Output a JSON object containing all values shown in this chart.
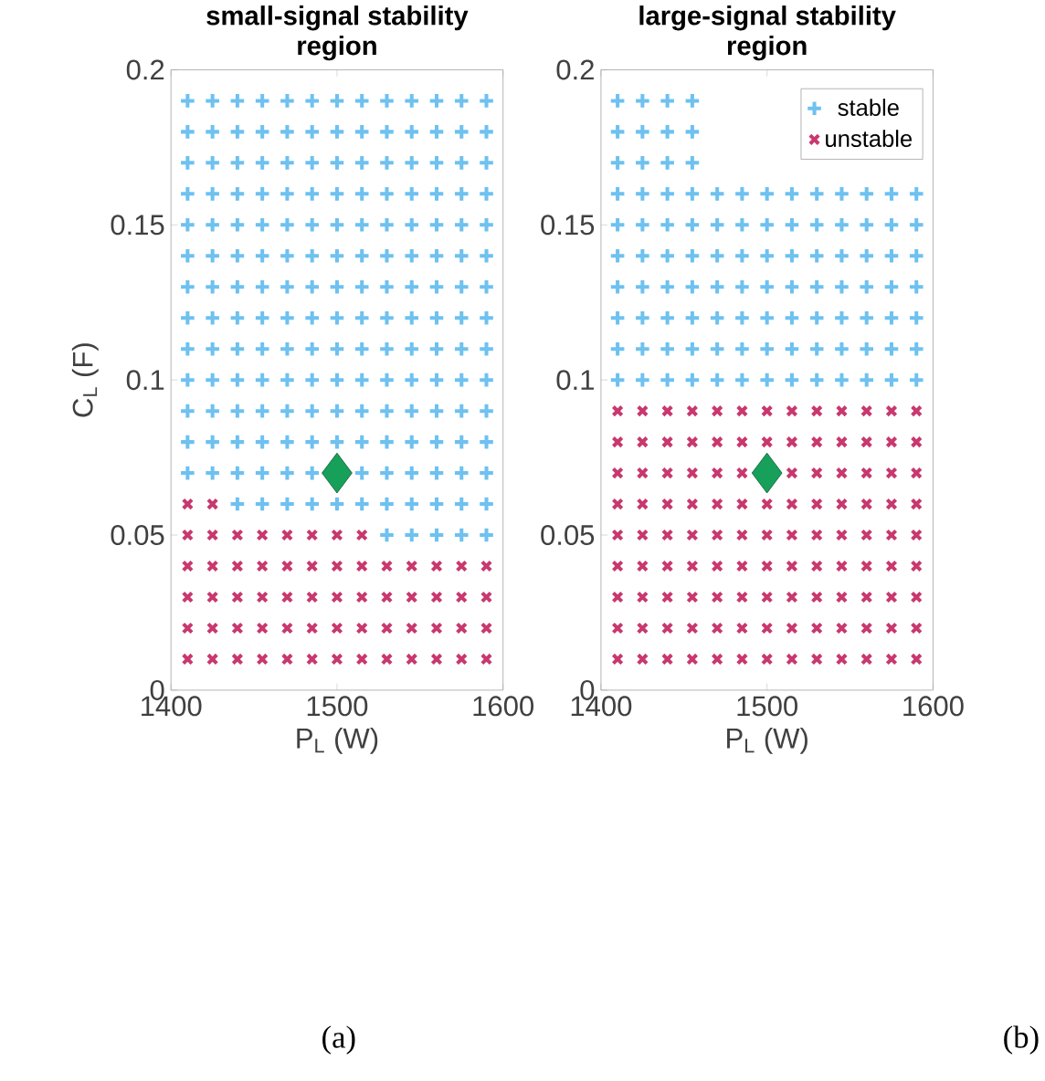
{
  "chart_data": [
    {
      "type": "scatter",
      "title": "small-signal stability region",
      "xlabel": "P$_{L}$ (W)",
      "ylabel": "C$_{L}$ (F)",
      "xlim": [
        1400,
        1600
      ],
      "ylim": [
        0,
        0.2
      ],
      "xticks": [
        1400,
        1500,
        1600
      ],
      "yticks": [
        0,
        0.05,
        0.1,
        0.15,
        0.2
      ],
      "annotations": [
        "(a)"
      ],
      "series": [
        {
          "color": "#6ec1f0",
          "marker": "plus",
          "x": [
            1530,
            1545,
            1560,
            1575,
            1590,
            1440,
            1455,
            1470,
            1485,
            1500,
            1515,
            1530,
            1545,
            1560,
            1575,
            1590,
            1410,
            1425,
            1440,
            1455,
            1470,
            1485,
            1515,
            1530,
            1545,
            1560,
            1575,
            1590,
            1410,
            1425,
            1440,
            1455,
            1470,
            1485,
            1500,
            1515,
            1530,
            1545,
            1560,
            1575,
            1590,
            1410,
            1425,
            1440,
            1455,
            1470,
            1485,
            1500,
            1515,
            1530,
            1545,
            1560,
            1575,
            1590,
            1410,
            1425,
            1440,
            1455,
            1470,
            1485,
            1500,
            1515,
            1530,
            1545,
            1560,
            1575,
            1590,
            1410,
            1425,
            1440,
            1455,
            1470,
            1485,
            1500,
            1515,
            1530,
            1545,
            1560,
            1575,
            1590,
            1410,
            1425,
            1440,
            1455,
            1470,
            1485,
            1500,
            1515,
            1530,
            1545,
            1560,
            1575,
            1590,
            1410,
            1425,
            1440,
            1455,
            1470,
            1485,
            1500,
            1515,
            1530,
            1545,
            1560,
            1575,
            1590,
            1410,
            1425,
            1440,
            1455,
            1470,
            1485,
            1500,
            1515,
            1530,
            1545,
            1560,
            1575,
            1590,
            1410,
            1425,
            1440,
            1455,
            1470,
            1485,
            1500,
            1515,
            1530,
            1545,
            1560,
            1575,
            1590,
            1410,
            1425,
            1440,
            1455,
            1470,
            1485,
            1500,
            1515,
            1530,
            1545,
            1560,
            1575,
            1590,
            1410,
            1425,
            1440,
            1455,
            1470,
            1485,
            1500,
            1515,
            1530,
            1545,
            1560,
            1575,
            1590,
            1410,
            1425,
            1440,
            1455,
            1470,
            1485,
            1500,
            1515,
            1530,
            1545,
            1560,
            1575,
            1590,
            1410,
            1425,
            1440,
            1455,
            1470,
            1485,
            1500,
            1515,
            1530,
            1545,
            1560,
            1575,
            1590
          ],
          "values": [
            0.05,
            0.05,
            0.05,
            0.05,
            0.05,
            0.06,
            0.06,
            0.06,
            0.06,
            0.06,
            0.06,
            0.06,
            0.06,
            0.06,
            0.06,
            0.06,
            0.07,
            0.07,
            0.07,
            0.07,
            0.07,
            0.07,
            0.07,
            0.07,
            0.07,
            0.07,
            0.07,
            0.07,
            0.08,
            0.08,
            0.08,
            0.08,
            0.08,
            0.08,
            0.08,
            0.08,
            0.08,
            0.08,
            0.08,
            0.08,
            0.08,
            0.09,
            0.09,
            0.09,
            0.09,
            0.09,
            0.09,
            0.09,
            0.09,
            0.09,
            0.09,
            0.09,
            0.09,
            0.09,
            0.1,
            0.1,
            0.1,
            0.1,
            0.1,
            0.1,
            0.1,
            0.1,
            0.1,
            0.1,
            0.1,
            0.1,
            0.1,
            0.11,
            0.11,
            0.11,
            0.11,
            0.11,
            0.11,
            0.11,
            0.11,
            0.11,
            0.11,
            0.11,
            0.11,
            0.11,
            0.12,
            0.12,
            0.12,
            0.12,
            0.12,
            0.12,
            0.12,
            0.12,
            0.12,
            0.12,
            0.12,
            0.12,
            0.12,
            0.13,
            0.13,
            0.13,
            0.13,
            0.13,
            0.13,
            0.13,
            0.13,
            0.13,
            0.13,
            0.13,
            0.13,
            0.13,
            0.14,
            0.14,
            0.14,
            0.14,
            0.14,
            0.14,
            0.14,
            0.14,
            0.14,
            0.14,
            0.14,
            0.14,
            0.14,
            0.15,
            0.15,
            0.15,
            0.15,
            0.15,
            0.15,
            0.15,
            0.15,
            0.15,
            0.15,
            0.15,
            0.15,
            0.15,
            0.16,
            0.16,
            0.16,
            0.16,
            0.16,
            0.16,
            0.16,
            0.16,
            0.16,
            0.16,
            0.16,
            0.16,
            0.16,
            0.17,
            0.17,
            0.17,
            0.17,
            0.17,
            0.17,
            0.17,
            0.17,
            0.17,
            0.17,
            0.17,
            0.17,
            0.17,
            0.18,
            0.18,
            0.18,
            0.18,
            0.18,
            0.18,
            0.18,
            0.18,
            0.18,
            0.18,
            0.18,
            0.18,
            0.18,
            0.19,
            0.19,
            0.19,
            0.19,
            0.19,
            0.19,
            0.19,
            0.19,
            0.19,
            0.19,
            0.19,
            0.19,
            0.19
          ]
        },
        {
          "color": "#c8386e",
          "marker": "cross",
          "x": [
            1410,
            1425,
            1440,
            1455,
            1470,
            1485,
            1500,
            1515,
            1530,
            1545,
            1560,
            1575,
            1590,
            1410,
            1425,
            1440,
            1455,
            1470,
            1485,
            1500,
            1515,
            1530,
            1545,
            1560,
            1575,
            1590,
            1410,
            1425,
            1440,
            1455,
            1470,
            1485,
            1500,
            1515,
            1530,
            1545,
            1560,
            1575,
            1590,
            1410,
            1425,
            1440,
            1455,
            1470,
            1485,
            1500,
            1515,
            1530,
            1545,
            1560,
            1575,
            1590,
            1410,
            1425,
            1440,
            1455,
            1470,
            1485,
            1500,
            1515,
            1410,
            1425
          ],
          "values": [
            0.01,
            0.01,
            0.01,
            0.01,
            0.01,
            0.01,
            0.01,
            0.01,
            0.01,
            0.01,
            0.01,
            0.01,
            0.01,
            0.02,
            0.02,
            0.02,
            0.02,
            0.02,
            0.02,
            0.02,
            0.02,
            0.02,
            0.02,
            0.02,
            0.02,
            0.02,
            0.03,
            0.03,
            0.03,
            0.03,
            0.03,
            0.03,
            0.03,
            0.03,
            0.03,
            0.03,
            0.03,
            0.03,
            0.03,
            0.04,
            0.04,
            0.04,
            0.04,
            0.04,
            0.04,
            0.04,
            0.04,
            0.04,
            0.04,
            0.04,
            0.04,
            0.04,
            0.05,
            0.05,
            0.05,
            0.05,
            0.05,
            0.05,
            0.05,
            0.05,
            0.06,
            0.06
          ]
        },
        {
          "color": "#16a05a",
          "marker": "diamond",
          "x": [
            1500
          ],
          "values": [
            0.07
          ]
        }
      ]
    },
    {
      "type": "scatter",
      "title": "large-signal stability region",
      "xlabel": "P$_{L}$ (W)",
      "xlim": [
        1400,
        1600
      ],
      "ylim": [
        0,
        0.2
      ],
      "xticks": [
        1400,
        1500,
        1600
      ],
      "yticks": [
        0,
        0.05,
        0.1,
        0.15,
        0.2
      ],
      "annotations": [
        "(b)"
      ],
      "legend": "top right",
      "series": [
        {
          "name": "stable",
          "color": "#6ec1f0",
          "marker": "plus",
          "x": [
            1410,
            1425,
            1440,
            1455,
            1470,
            1485,
            1500,
            1515,
            1530,
            1545,
            1560,
            1575,
            1590,
            1410,
            1425,
            1440,
            1455,
            1470,
            1485,
            1500,
            1515,
            1530,
            1545,
            1560,
            1575,
            1590,
            1410,
            1425,
            1440,
            1455,
            1470,
            1485,
            1500,
            1515,
            1530,
            1545,
            1560,
            1575,
            1590,
            1410,
            1425,
            1440,
            1455,
            1470,
            1485,
            1500,
            1515,
            1530,
            1545,
            1560,
            1575,
            1590,
            1410,
            1425,
            1440,
            1455,
            1470,
            1485,
            1500,
            1515,
            1530,
            1545,
            1560,
            1575,
            1590,
            1410,
            1425,
            1440,
            1455,
            1470,
            1485,
            1500,
            1515,
            1530,
            1545,
            1560,
            1575,
            1590,
            1410,
            1425,
            1440,
            1455,
            1470,
            1485,
            1500,
            1515,
            1530,
            1545,
            1560,
            1575,
            1590,
            1410,
            1425,
            1440,
            1455,
            1410,
            1425,
            1440,
            1455,
            1410,
            1425,
            1440,
            1455
          ],
          "values": [
            0.1,
            0.1,
            0.1,
            0.1,
            0.1,
            0.1,
            0.1,
            0.1,
            0.1,
            0.1,
            0.1,
            0.1,
            0.1,
            0.11,
            0.11,
            0.11,
            0.11,
            0.11,
            0.11,
            0.11,
            0.11,
            0.11,
            0.11,
            0.11,
            0.11,
            0.11,
            0.12,
            0.12,
            0.12,
            0.12,
            0.12,
            0.12,
            0.12,
            0.12,
            0.12,
            0.12,
            0.12,
            0.12,
            0.12,
            0.13,
            0.13,
            0.13,
            0.13,
            0.13,
            0.13,
            0.13,
            0.13,
            0.13,
            0.13,
            0.13,
            0.13,
            0.13,
            0.14,
            0.14,
            0.14,
            0.14,
            0.14,
            0.14,
            0.14,
            0.14,
            0.14,
            0.14,
            0.14,
            0.14,
            0.14,
            0.15,
            0.15,
            0.15,
            0.15,
            0.15,
            0.15,
            0.15,
            0.15,
            0.15,
            0.15,
            0.15,
            0.15,
            0.15,
            0.16,
            0.16,
            0.16,
            0.16,
            0.16,
            0.16,
            0.16,
            0.16,
            0.16,
            0.16,
            0.16,
            0.16,
            0.16,
            0.17,
            0.17,
            0.17,
            0.17,
            0.18,
            0.18,
            0.18,
            0.18,
            0.19,
            0.19,
            0.19,
            0.19
          ]
        },
        {
          "name": "unstable",
          "color": "#c8386e",
          "marker": "cross",
          "x": [
            1410,
            1425,
            1440,
            1455,
            1470,
            1485,
            1500,
            1515,
            1530,
            1545,
            1560,
            1575,
            1590,
            1410,
            1425,
            1440,
            1455,
            1470,
            1485,
            1500,
            1515,
            1530,
            1545,
            1560,
            1575,
            1590,
            1410,
            1425,
            1440,
            1455,
            1470,
            1485,
            1500,
            1515,
            1530,
            1545,
            1560,
            1575,
            1590,
            1410,
            1425,
            1440,
            1455,
            1470,
            1485,
            1500,
            1515,
            1530,
            1545,
            1560,
            1575,
            1590,
            1410,
            1425,
            1440,
            1455,
            1470,
            1485,
            1500,
            1515,
            1530,
            1545,
            1560,
            1575,
            1590,
            1410,
            1425,
            1440,
            1455,
            1470,
            1485,
            1500,
            1515,
            1530,
            1545,
            1560,
            1575,
            1590,
            1410,
            1425,
            1440,
            1455,
            1470,
            1485,
            1515,
            1530,
            1545,
            1560,
            1575,
            1590,
            1410,
            1425,
            1440,
            1455,
            1470,
            1485,
            1500,
            1515,
            1530,
            1545,
            1560,
            1575,
            1590,
            1410,
            1425,
            1440,
            1455,
            1470,
            1485,
            1500,
            1515,
            1530,
            1545,
            1560,
            1575,
            1590
          ],
          "values": [
            0.01,
            0.01,
            0.01,
            0.01,
            0.01,
            0.01,
            0.01,
            0.01,
            0.01,
            0.01,
            0.01,
            0.01,
            0.01,
            0.02,
            0.02,
            0.02,
            0.02,
            0.02,
            0.02,
            0.02,
            0.02,
            0.02,
            0.02,
            0.02,
            0.02,
            0.02,
            0.03,
            0.03,
            0.03,
            0.03,
            0.03,
            0.03,
            0.03,
            0.03,
            0.03,
            0.03,
            0.03,
            0.03,
            0.03,
            0.04,
            0.04,
            0.04,
            0.04,
            0.04,
            0.04,
            0.04,
            0.04,
            0.04,
            0.04,
            0.04,
            0.04,
            0.04,
            0.05,
            0.05,
            0.05,
            0.05,
            0.05,
            0.05,
            0.05,
            0.05,
            0.05,
            0.05,
            0.05,
            0.05,
            0.05,
            0.06,
            0.06,
            0.06,
            0.06,
            0.06,
            0.06,
            0.06,
            0.06,
            0.06,
            0.06,
            0.06,
            0.06,
            0.06,
            0.07,
            0.07,
            0.07,
            0.07,
            0.07,
            0.07,
            0.07,
            0.07,
            0.07,
            0.07,
            0.07,
            0.07,
            0.08,
            0.08,
            0.08,
            0.08,
            0.08,
            0.08,
            0.08,
            0.08,
            0.08,
            0.08,
            0.08,
            0.08,
            0.08,
            0.09,
            0.09,
            0.09,
            0.09,
            0.09,
            0.09,
            0.09,
            0.09,
            0.09,
            0.09,
            0.09,
            0.09,
            0.09
          ]
        },
        {
          "color": "#16a05a",
          "marker": "diamond",
          "x": [
            1500
          ],
          "values": [
            0.07
          ]
        }
      ]
    }
  ]
}
